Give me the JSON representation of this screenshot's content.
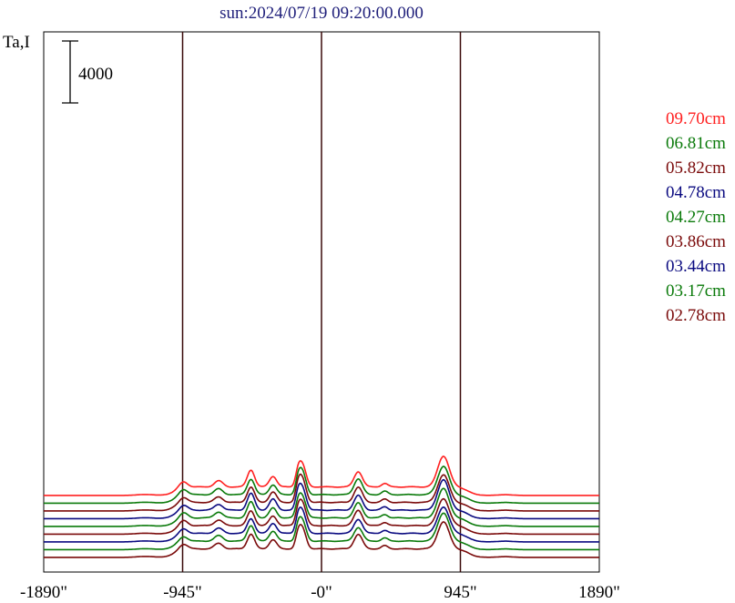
{
  "chart_data": {
    "type": "line",
    "title": "sun:2024/07/19 09:20:00.000",
    "title_color": "#1f1f7a",
    "ylabel": "Ta,I",
    "scale_bar_label": "4000",
    "x_ticks": [
      {
        "value": -1890,
        "label": "-1890\""
      },
      {
        "value": -945,
        "label": "-945\""
      },
      {
        "value": 0,
        "label": "-0\""
      },
      {
        "value": 945,
        "label": "945\""
      },
      {
        "value": 1890,
        "label": "1890\""
      }
    ],
    "xlim": [
      -1890,
      1890
    ],
    "vertical_lines": [
      -945,
      0,
      945
    ],
    "vertical_line_color": "#3a0a0a",
    "grid": false,
    "legend_position": "right",
    "series": [
      {
        "name": "09.70cm",
        "color": "#ff2020",
        "baseline": 4300,
        "peak_scale": 1.0
      },
      {
        "name": "06.81cm",
        "color": "#0a7a0a",
        "baseline": 3800,
        "peak_scale": 0.98
      },
      {
        "name": "05.82cm",
        "color": "#7a0a0a",
        "baseline": 3300,
        "peak_scale": 0.98
      },
      {
        "name": "04.78cm",
        "color": "#0a0a80",
        "baseline": 2800,
        "peak_scale": 1.0
      },
      {
        "name": "04.27cm",
        "color": "#0a7a0a",
        "baseline": 2300,
        "peak_scale": 0.96
      },
      {
        "name": "03.86cm",
        "color": "#7a0a0a",
        "baseline": 1800,
        "peak_scale": 0.95
      },
      {
        "name": "03.44cm",
        "color": "#0a0a80",
        "baseline": 1300,
        "peak_scale": 0.93
      },
      {
        "name": "03.17cm",
        "color": "#0a7a0a",
        "baseline": 800,
        "peak_scale": 0.92
      },
      {
        "name": "02.78cm",
        "color": "#7a0a0a",
        "baseline": 300,
        "peak_scale": 0.9
      }
    ],
    "profile_features": [
      {
        "x": -940,
        "height": 380,
        "width": 40
      },
      {
        "x": -700,
        "height": 380,
        "width": 40
      },
      {
        "x": -480,
        "height": 1050,
        "width": 35
      },
      {
        "x": -330,
        "height": 680,
        "width": 35
      },
      {
        "x": -160,
        "height": 800,
        "width": 25
      },
      {
        "x": -130,
        "height": 1450,
        "width": 35
      },
      {
        "x": 250,
        "height": 1000,
        "width": 40
      },
      {
        "x": 430,
        "height": 220,
        "width": 30
      },
      {
        "x": 830,
        "height": 1900,
        "width": 55
      }
    ],
    "disk_edges": [
      -1000,
      1000
    ],
    "plateau_height": 550
  }
}
